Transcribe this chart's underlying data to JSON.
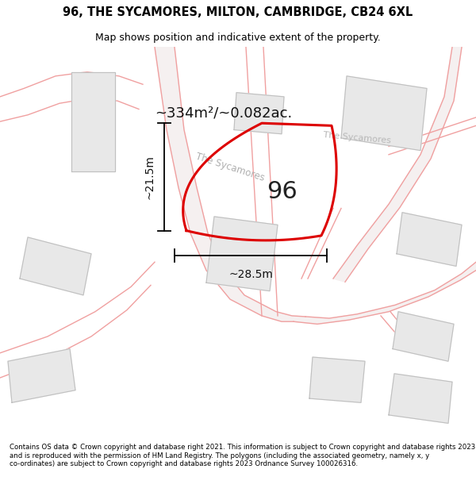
{
  "title_line1": "96, THE SYCAMORES, MILTON, CAMBRIDGE, CB24 6XL",
  "title_line2": "Map shows position and indicative extent of the property.",
  "footer_text": "Contains OS data © Crown copyright and database right 2021. This information is subject to Crown copyright and database rights 2023 and is reproduced with the permission of HM Land Registry. The polygons (including the associated geometry, namely x, y co-ordinates) are subject to Crown copyright and database rights 2023 Ordnance Survey 100026316.",
  "map_bg_color": "#ffffff",
  "property_fill": "none",
  "property_edge": "#dd0000",
  "road_color": "#f0a0a0",
  "other_poly_fill": "#e8e8e8",
  "other_poly_edge": "#c0c0c0",
  "road_fill": "#f0f0f0",
  "road_edge": "#e0c0c0",
  "area_text": "~334m²/~0.082ac.",
  "label_96": "96",
  "dim_width": "~28.5m",
  "dim_height": "~21.5m",
  "road_label_1": "The Sycamores",
  "road_label_2": "The Sycamores"
}
